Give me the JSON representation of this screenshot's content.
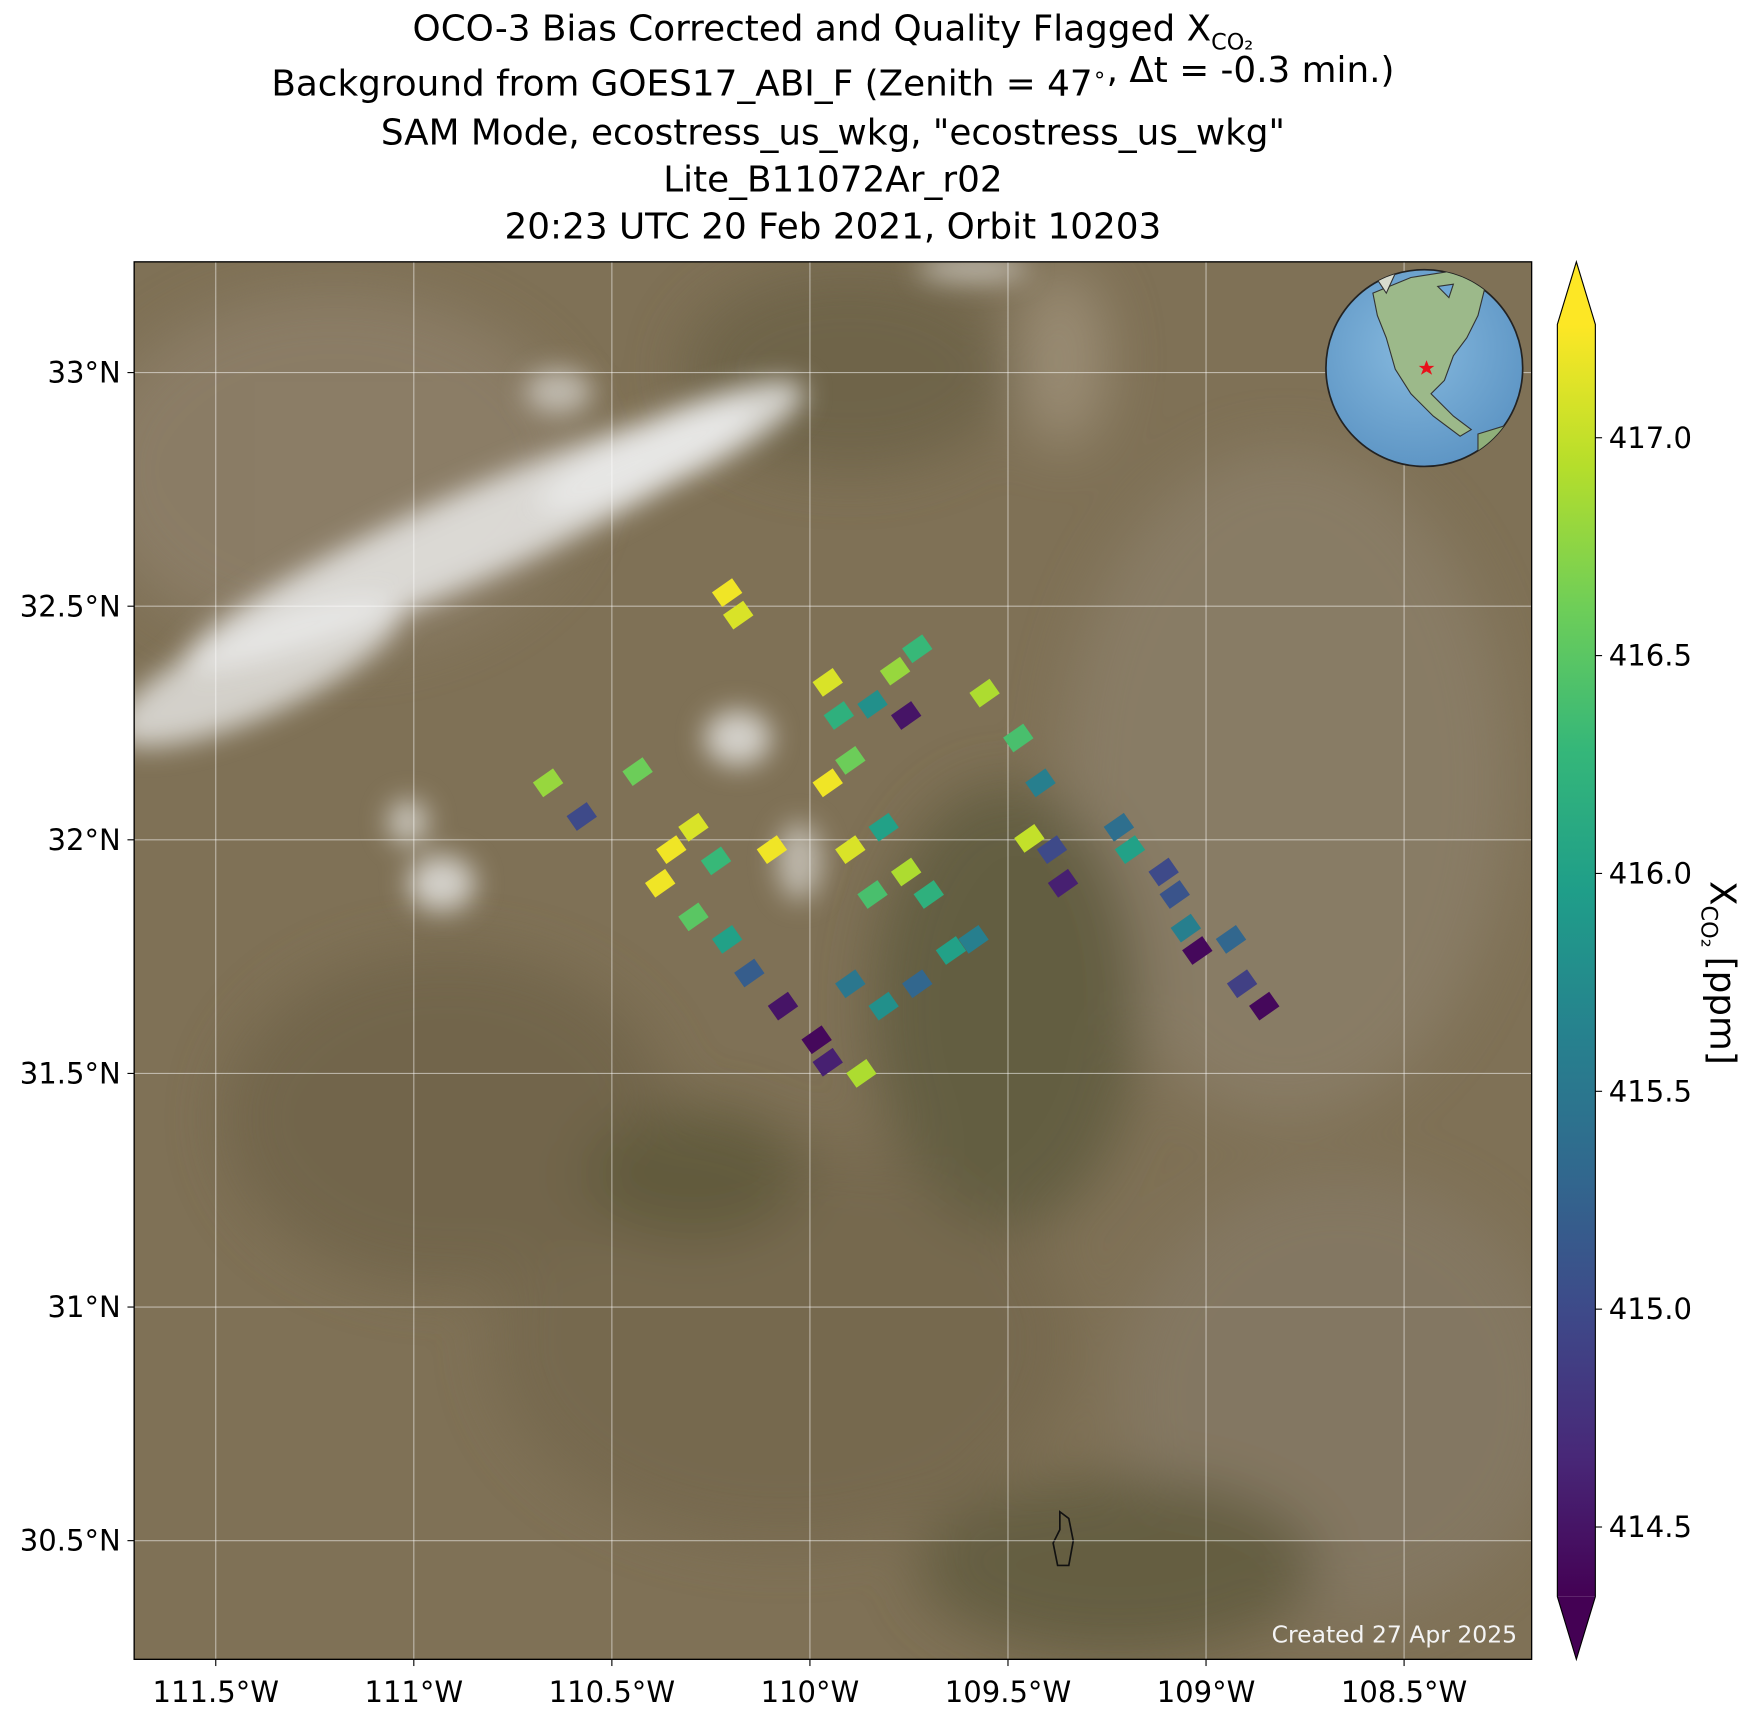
{
  "chart_data": {
    "type": "map",
    "title": [
      "OCO-3 Bias Corrected and Quality Flagged X",
      "Background from GOES17_ABI_F (Zenith = 47$^\\circ$, Δt = -0.3 min.)",
      "SAM Mode, ecostress_us_wkg, \"ecostress_us_wkg\"",
      "Lite_B11072Ar_r02",
      "20:23 UTC 20 Feb 2021, Orbit 10203"
    ],
    "title_subscript": "CO₂",
    "xlim": [
      -111.706,
      -108.178
    ],
    "ylim": [
      30.246,
      33.237
    ],
    "xticks": [
      {
        "value": -111.5,
        "label": "111.5°W"
      },
      {
        "value": -111,
        "label": "111°W"
      },
      {
        "value": -110.5,
        "label": "110.5°W"
      },
      {
        "value": -110,
        "label": "110°W"
      },
      {
        "value": -109.5,
        "label": "109.5°W"
      },
      {
        "value": -109,
        "label": "109°W"
      },
      {
        "value": -108.5,
        "label": "108.5°W"
      }
    ],
    "yticks": [
      {
        "value": 30.5,
        "label": "30.5°N"
      },
      {
        "value": 31,
        "label": "31°N"
      },
      {
        "value": 31.5,
        "label": "31.5°N"
      },
      {
        "value": 32,
        "label": "32°N"
      },
      {
        "value": 32.5,
        "label": "32.5°N"
      },
      {
        "value": 33,
        "label": "33°N"
      }
    ],
    "grid": true,
    "annotation": "Created 27 Apr 2025",
    "colorbar": {
      "colormap": "viridis",
      "extend": "both",
      "lim": [
        414.34,
        417.26
      ],
      "ticks": [
        {
          "value": 414.5,
          "label": "414.5"
        },
        {
          "value": 415,
          "label": "415.0"
        },
        {
          "value": 415.5,
          "label": "415.5"
        },
        {
          "value": 416,
          "label": "416.0"
        },
        {
          "value": 416.5,
          "label": "416.5"
        },
        {
          "value": 417,
          "label": "417.0"
        }
      ],
      "label": "X",
      "label_subscript": "CO₂",
      "label_unit": "[ppm]"
    },
    "soundings": {
      "lon": [
        -110.209,
        -110.181,
        -110.661,
        -110.576,
        -110.435,
        -110.35,
        -110.294,
        -110.378,
        -110.237,
        -110.294,
        -110.209,
        -110.153,
        -110.068,
        -109.983,
        -109.955,
        -109.898,
        -109.814,
        -109.729,
        -109.644,
        -109.587,
        -109.842,
        -109.757,
        -109.7,
        -109.898,
        -109.814,
        -109.955,
        -109.898,
        -109.927,
        -109.842,
        -109.757,
        -109.785,
        -109.729,
        -109.955,
        -109.559,
        -109.474,
        -109.418,
        -109.446,
        -109.389,
        -109.361,
        -109.22,
        -109.192,
        -109.107,
        -109.079,
        -109.051,
        -109.022,
        -108.937,
        -108.909,
        -108.853,
        -109.87,
        -110.096
      ],
      "lat": [
        32.529,
        32.481,
        32.122,
        32.05,
        32.146,
        31.979,
        32.027,
        31.907,
        31.955,
        31.835,
        31.787,
        31.715,
        31.644,
        31.572,
        31.524,
        31.692,
        31.644,
        31.692,
        31.763,
        31.787,
        31.883,
        31.931,
        31.883,
        31.979,
        32.027,
        32.122,
        32.17,
        32.266,
        32.29,
        32.266,
        32.361,
        32.409,
        32.337,
        32.314,
        32.218,
        32.122,
        32.003,
        31.979,
        31.907,
        32.027,
        31.979,
        31.931,
        31.883,
        31.811,
        31.763,
        31.787,
        31.692,
        31.644,
        31.5,
        31.979
      ],
      "values": [
        417.2,
        417.1,
        416.8,
        415.0,
        416.6,
        417.2,
        417.1,
        417.2,
        416.3,
        416.5,
        416.0,
        415.2,
        414.5,
        414.4,
        414.6,
        415.5,
        415.8,
        415.3,
        416.0,
        415.6,
        416.4,
        416.9,
        416.2,
        417.1,
        416.0,
        417.2,
        416.6,
        416.2,
        415.8,
        414.5,
        416.8,
        416.3,
        417.1,
        416.9,
        416.4,
        415.6,
        417.0,
        415.0,
        414.6,
        415.4,
        416.0,
        415.0,
        415.1,
        415.6,
        414.4,
        415.3,
        414.9,
        414.4,
        416.9,
        417.2
      ]
    }
  }
}
